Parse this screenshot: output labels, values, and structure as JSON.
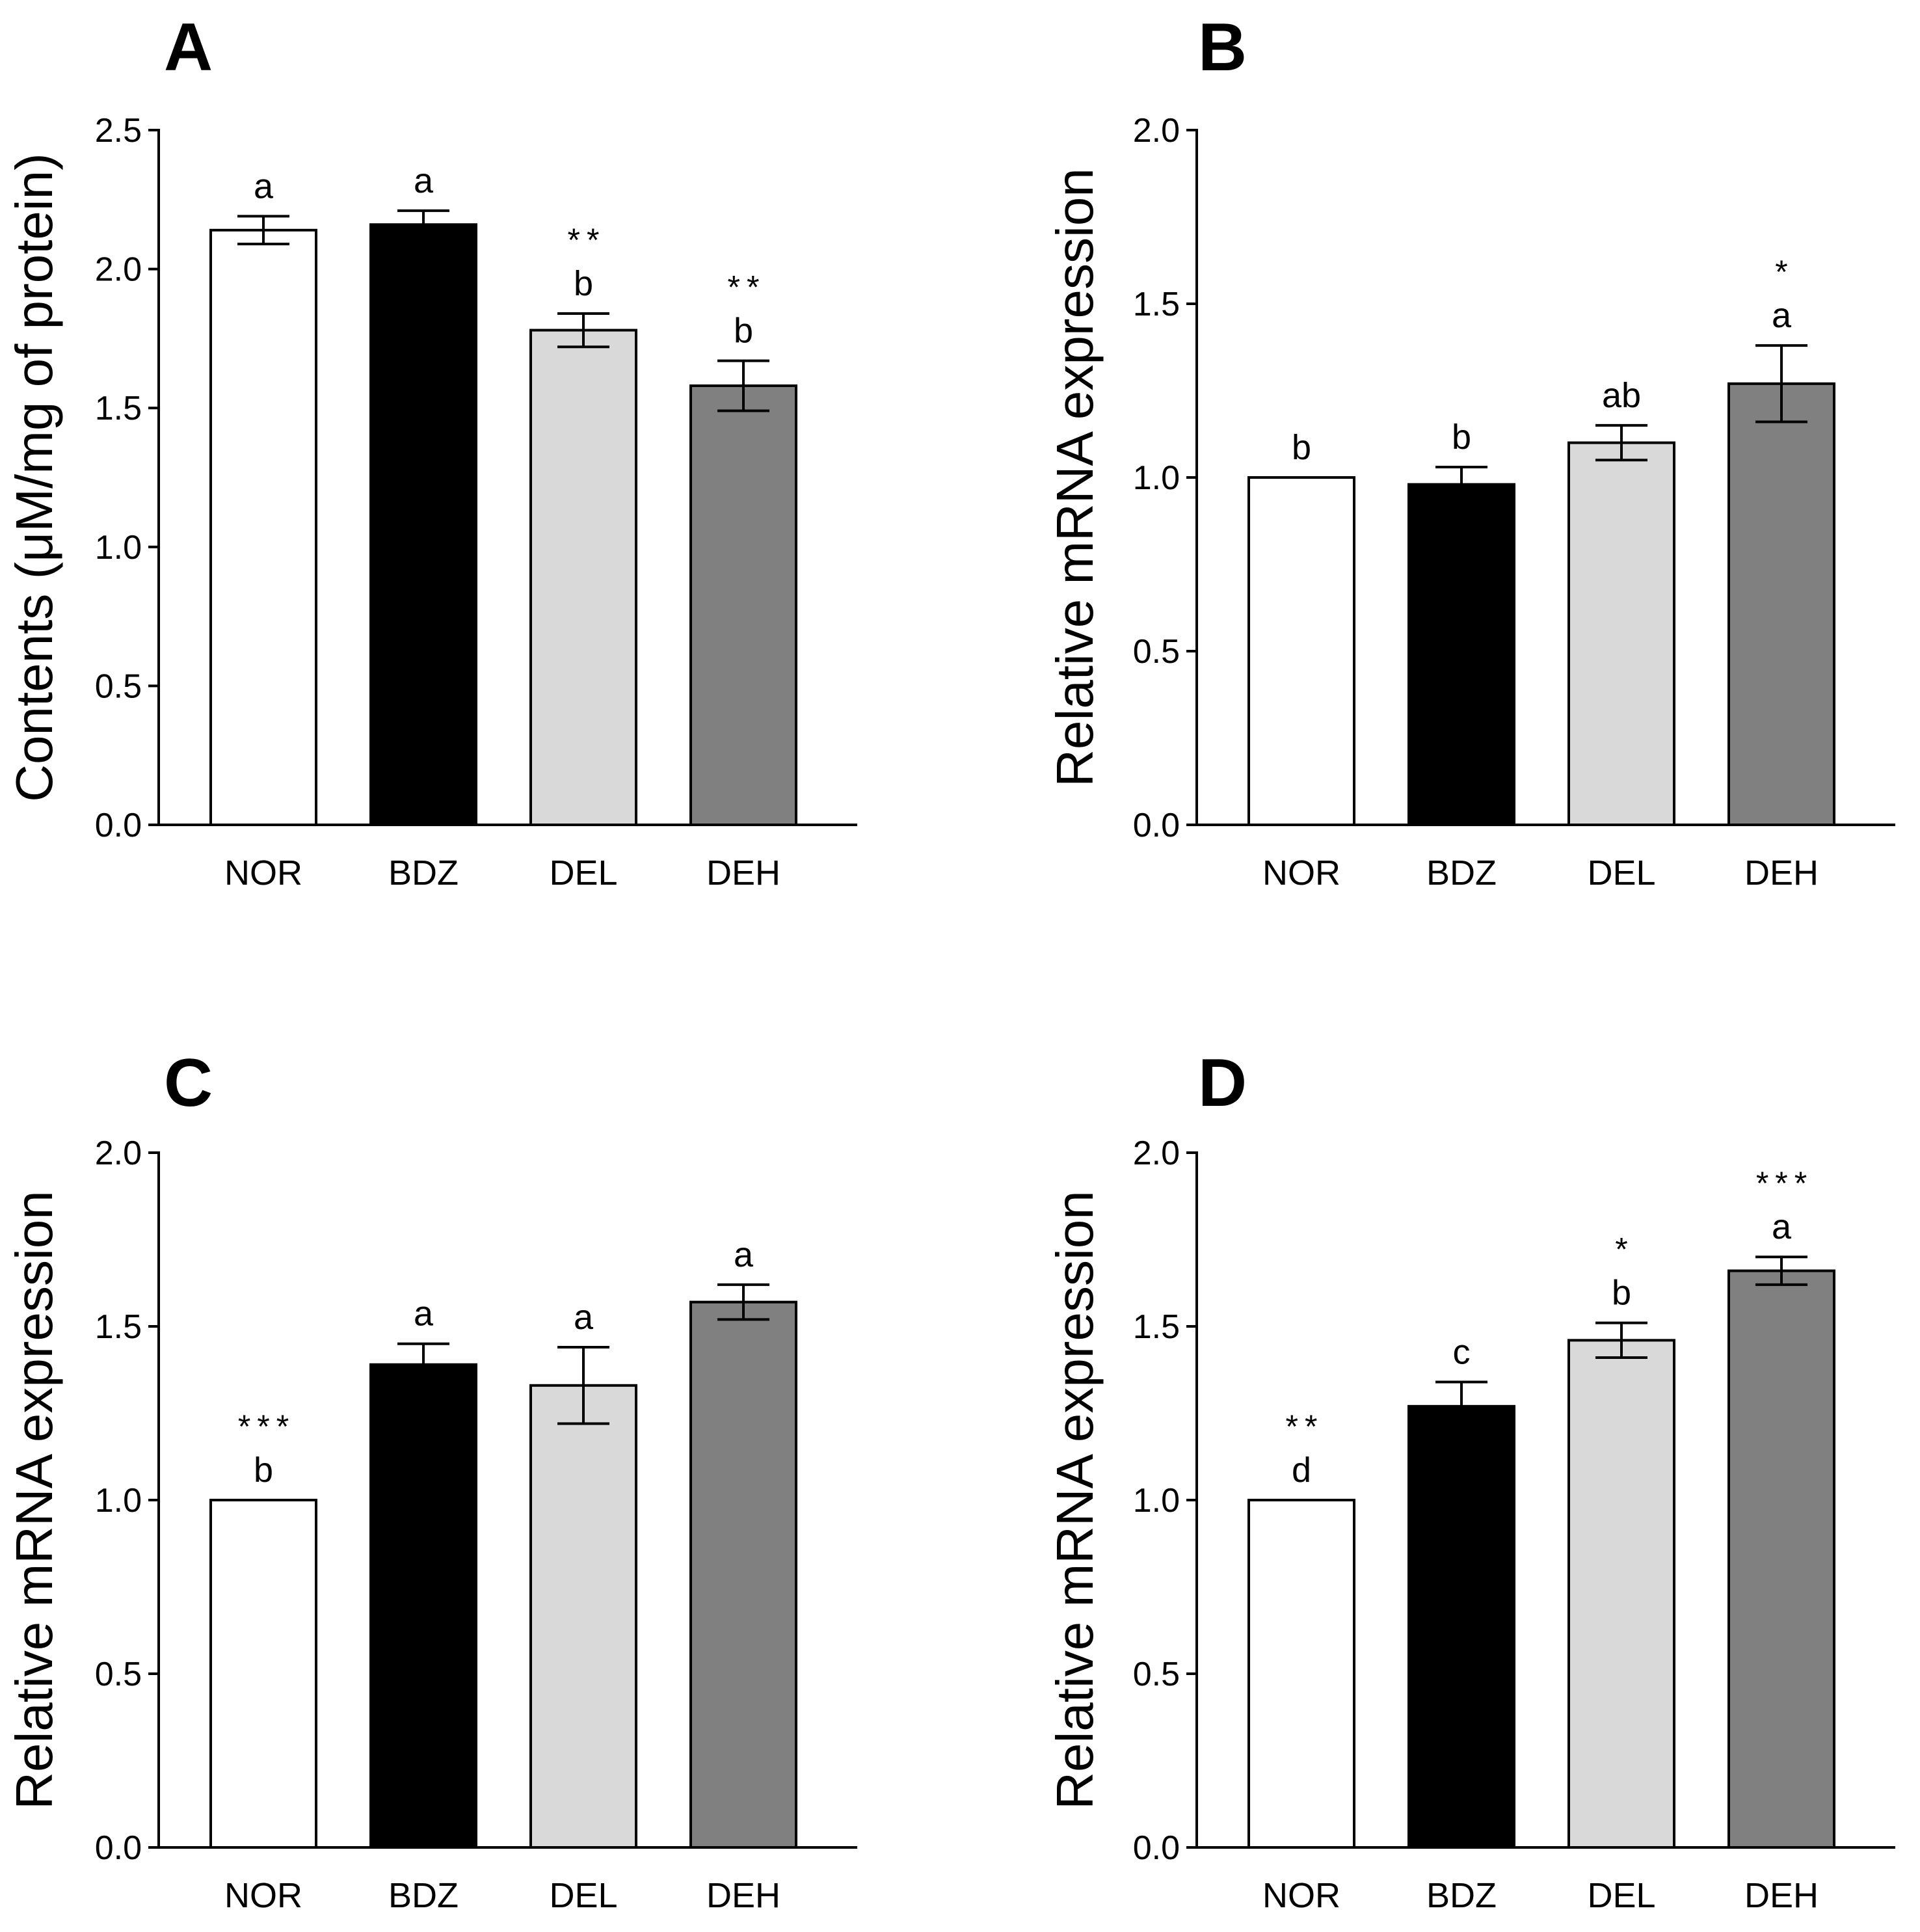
{
  "chart_data": [
    {
      "type": "bar",
      "panel": "A",
      "ylabel": "Contents (μM/mg of protein)",
      "ylim": [
        0,
        2.5
      ],
      "yticks": [
        "0.0",
        "0.5",
        "1.0",
        "1.5",
        "2.0",
        "2.5"
      ],
      "categories": [
        "NOR",
        "BDZ",
        "DEL",
        "DEH"
      ],
      "values": [
        2.14,
        2.16,
        1.78,
        1.58
      ],
      "errors": [
        0.05,
        0.05,
        0.06,
        0.09
      ],
      "letters": [
        "a",
        "a",
        "b",
        "b"
      ],
      "stars": [
        "",
        "",
        "**",
        "**"
      ],
      "colors": [
        "#ffffff",
        "#000000",
        "#d9d9d9",
        "#808080"
      ]
    },
    {
      "type": "bar",
      "panel": "B",
      "ylabel": "Relative mRNA expression",
      "ylim": [
        0,
        2.0
      ],
      "yticks": [
        "0.0",
        "0.5",
        "1.0",
        "1.5",
        "2.0"
      ],
      "categories": [
        "NOR",
        "BDZ",
        "DEL",
        "DEH"
      ],
      "values": [
        1.0,
        0.98,
        1.1,
        1.27
      ],
      "errors": [
        0.0,
        0.05,
        0.05,
        0.11
      ],
      "letters": [
        "b",
        "b",
        "ab",
        "a"
      ],
      "stars": [
        "",
        "",
        "",
        "*"
      ],
      "colors": [
        "#ffffff",
        "#000000",
        "#d9d9d9",
        "#808080"
      ]
    },
    {
      "type": "bar",
      "panel": "C",
      "ylabel": "Relative mRNA expression",
      "ylim": [
        0,
        2.0
      ],
      "yticks": [
        "0.0",
        "0.5",
        "1.0",
        "1.5",
        "2.0"
      ],
      "categories": [
        "NOR",
        "BDZ",
        "DEL",
        "DEH"
      ],
      "values": [
        1.0,
        1.39,
        1.33,
        1.57
      ],
      "errors": [
        0.0,
        0.06,
        0.11,
        0.05
      ],
      "letters": [
        "b",
        "a",
        "a",
        "a"
      ],
      "stars": [
        "***",
        "",
        "",
        ""
      ],
      "colors": [
        "#ffffff",
        "#000000",
        "#d9d9d9",
        "#808080"
      ]
    },
    {
      "type": "bar",
      "panel": "D",
      "ylabel": "Relative mRNA expression",
      "ylim": [
        0,
        2.0
      ],
      "yticks": [
        "0.0",
        "0.5",
        "1.0",
        "1.5",
        "2.0"
      ],
      "categories": [
        "NOR",
        "BDZ",
        "DEL",
        "DEH"
      ],
      "values": [
        1.0,
        1.27,
        1.46,
        1.66
      ],
      "errors": [
        0.0,
        0.07,
        0.05,
        0.04
      ],
      "letters": [
        "d",
        "c",
        "b",
        "a"
      ],
      "stars": [
        "**",
        "",
        "*",
        "***"
      ],
      "colors": [
        "#ffffff",
        "#000000",
        "#d9d9d9",
        "#808080"
      ]
    }
  ]
}
